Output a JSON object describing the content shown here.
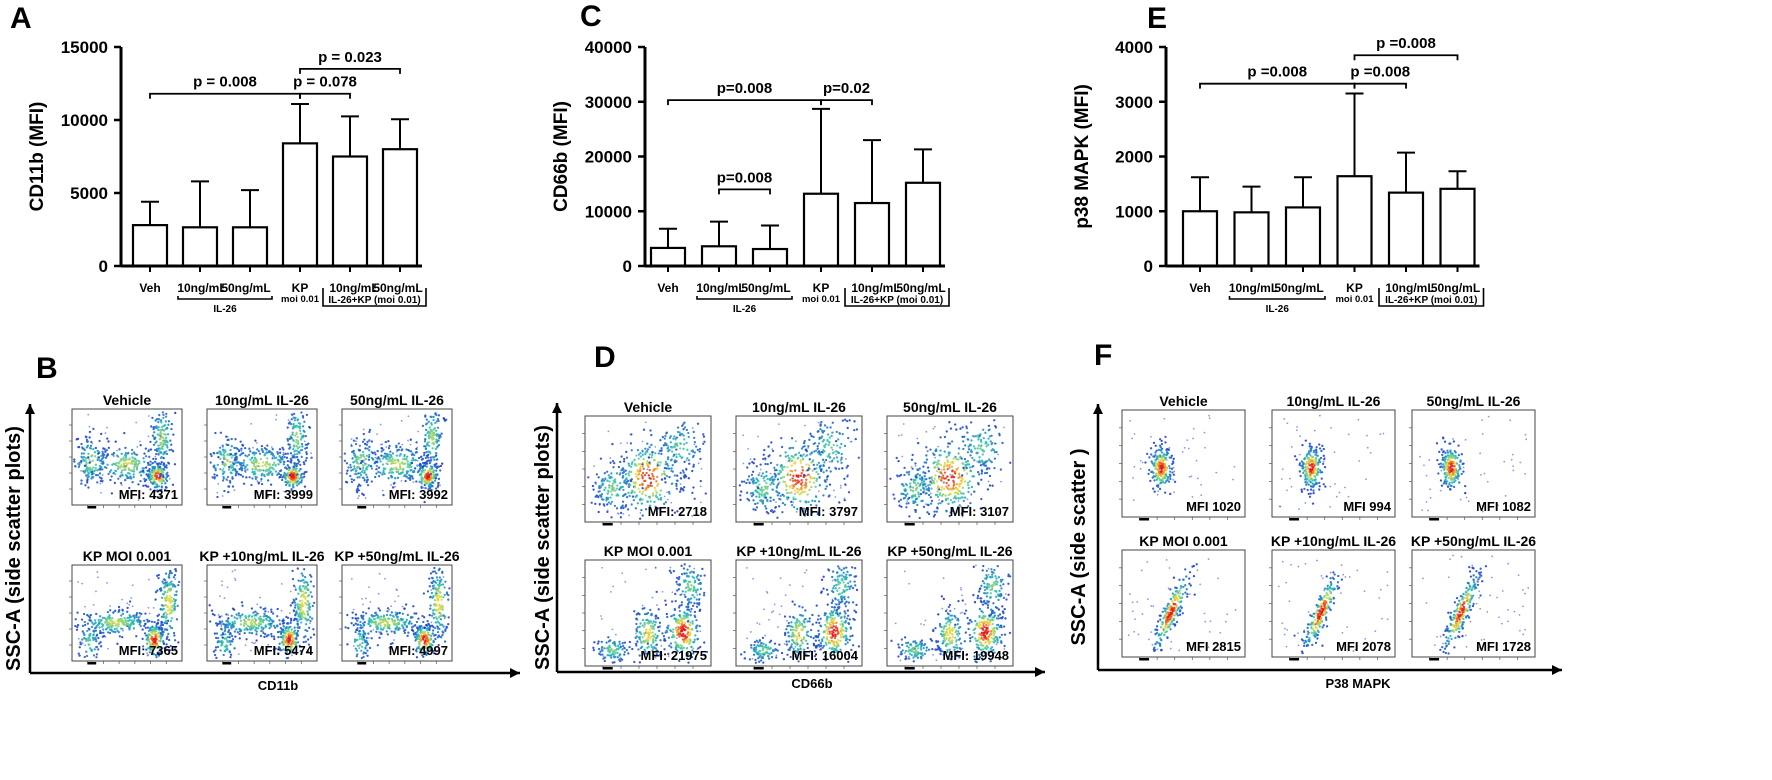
{
  "chart_data": [
    {
      "type": "bar",
      "panel": "A",
      "ylabel": "CD11b (MFI)",
      "ylim": [
        0,
        15000
      ],
      "yticks": [
        0,
        5000,
        10000,
        15000
      ],
      "yticklabels": [
        "0",
        "5000",
        "10000",
        "15000"
      ],
      "categories": [
        "Veh",
        "10ng/mL",
        "50ng/mL",
        "KP",
        "10ng/mL",
        "50ng/mL"
      ],
      "kp_sublabel": "moi 0.01",
      "values": [
        2800,
        2650,
        2650,
        8400,
        7500,
        8000
      ],
      "errors": [
        1600,
        3150,
        2550,
        2700,
        2750,
        2050
      ],
      "group1_label": "IL-26",
      "group2_label": "IL-26+KP (moi 0.01)",
      "pvalues": [
        {
          "label": "p = 0.008",
          "from": 0,
          "to": 3,
          "level": 11800
        },
        {
          "label": "p = 0.078",
          "from": 3,
          "to": 4,
          "level": 11800
        },
        {
          "label": "p = 0.023",
          "from": 3,
          "to": 5,
          "level": 13500
        }
      ]
    },
    {
      "type": "bar",
      "panel": "C",
      "ylabel": "CD66b (MFI)",
      "ylim": [
        0,
        40000
      ],
      "yticks": [
        0,
        10000,
        20000,
        30000,
        40000
      ],
      "yticklabels": [
        "0",
        "10000",
        "20000",
        "30000",
        "40000"
      ],
      "categories": [
        "Veh",
        "10ng/mL",
        "50ng/mL",
        "KP",
        "10ng/mL",
        "50ng/mL"
      ],
      "kp_sublabel": "moi 0.01",
      "values": [
        3300,
        3600,
        3100,
        13200,
        11500,
        15200
      ],
      "errors": [
        3500,
        4500,
        4300,
        15500,
        11500,
        6100
      ],
      "group1_label": "IL-26",
      "group2_label": "IL-26+KP (moi 0.01)",
      "pvalues": [
        {
          "label": "p=0.008",
          "from": 0,
          "to": 3,
          "level": 30300
        },
        {
          "label": "p=0.02",
          "from": 3,
          "to": 4,
          "level": 30300
        },
        {
          "label": "p=0.008",
          "from": 1,
          "to": 2,
          "level": 14000
        }
      ]
    },
    {
      "type": "bar",
      "panel": "E",
      "ylabel": "p38 MAPK (MFI)",
      "ylim": [
        0,
        4000
      ],
      "yticks": [
        0,
        1000,
        2000,
        3000,
        4000
      ],
      "yticklabels": [
        "0",
        "1000",
        "2000",
        "3000",
        "4000"
      ],
      "categories": [
        "Veh",
        "10ng/mL",
        "50ng/mL",
        "KP",
        "10ng/mL",
        "50ng/mL"
      ],
      "kp_sublabel": "moi 0.01",
      "values": [
        1000,
        980,
        1070,
        1640,
        1340,
        1410
      ],
      "errors": [
        620,
        470,
        550,
        1510,
        730,
        320
      ],
      "group1_label": "IL-26",
      "group2_label": "IL-26+KP (moi 0.01)",
      "pvalues": [
        {
          "label": "p =0.008",
          "from": 0,
          "to": 3,
          "level": 3330
        },
        {
          "label": "p =0.008",
          "from": 3,
          "to": 4,
          "level": 3330
        },
        {
          "label": "p =0.008",
          "from": 3,
          "to": 5,
          "level": 3850
        }
      ]
    },
    {
      "type": "scatter",
      "panel": "B",
      "xlabel": "CD11b",
      "ylabel": "SSC-A (side scatter plots)",
      "plots": [
        {
          "title": "Vehicle",
          "mfi": "MFI: 4371"
        },
        {
          "title": "10ng/mL IL-26",
          "mfi": "MFI: 3999"
        },
        {
          "title": "50ng/mL IL-26",
          "mfi": "MFI: 3992"
        },
        {
          "title": "KP MOI 0.001",
          "mfi": "MFI: 7365"
        },
        {
          "title": "KP +10ng/mL IL-26",
          "mfi": "MFI: 5474"
        },
        {
          "title": "KP +50ng/mL IL-26",
          "mfi": "MFI: 4997"
        }
      ]
    },
    {
      "type": "scatter",
      "panel": "D",
      "xlabel": "CD66b",
      "ylabel": "SSC-A (side scatter plots)",
      "plots": [
        {
          "title": "Vehicle",
          "mfi": "MFI: 2718"
        },
        {
          "title": "10ng/mL IL-26",
          "mfi": "MFI: 3797"
        },
        {
          "title": "50ng/mL IL-26",
          "mfi": "MFI: 3107"
        },
        {
          "title": "KP MOI 0.001",
          "mfi": "MFI: 21975"
        },
        {
          "title": "KP +10ng/mL IL-26",
          "mfi": "MFI: 16004"
        },
        {
          "title": "KP +50ng/mL IL-26",
          "mfi": "MFI: 19948"
        }
      ]
    },
    {
      "type": "scatter",
      "panel": "F",
      "xlabel": "P38 MAPK",
      "ylabel": "SSC-A (side scatter )",
      "plots": [
        {
          "title": "Vehicle",
          "mfi": "MFI 1020"
        },
        {
          "title": "10ng/mL IL-26",
          "mfi": "MFI 994"
        },
        {
          "title": "50ng/mL IL-26",
          "mfi": "MFI 1082"
        },
        {
          "title": "KP MOI 0.001",
          "mfi": "MFI 2815"
        },
        {
          "title": "KP +10ng/mL IL-26",
          "mfi": "MFI 2078"
        },
        {
          "title": "KP +50ng/mL IL-26",
          "mfi": "MFI 1728"
        }
      ]
    }
  ],
  "colors": {
    "ink": "#000000",
    "bar_fill": "#ffffff",
    "density_low": "#1d2fd6",
    "density_mid": "#27c2b8",
    "density_high": "#f4e03a",
    "density_peak": "#e8141a"
  }
}
